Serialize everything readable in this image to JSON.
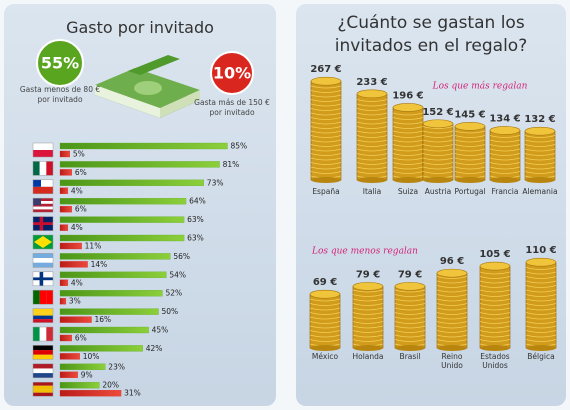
{
  "left": {
    "title": "Gasto por invitado",
    "stats": [
      {
        "value": 55,
        "label": "55%",
        "lines": [
          "Gasta menos de 80 €",
          "por invitado"
        ]
      },
      {
        "value": 10,
        "label": "10%",
        "lines": [
          "Gasta más de 150 €",
          "por invitado"
        ]
      }
    ]
  },
  "right": {
    "title": "¿Cuánto se gastan los invitados en el regalo?"
  },
  "chart_data": [
    {
      "type": "hbar",
      "series": [
        {
          "color": "#5fae22",
          "values": [
            85,
            81,
            73,
            64,
            63,
            63,
            56,
            54,
            52,
            50,
            45,
            42,
            23,
            20
          ],
          "value_labels": [
            "85%",
            "81%",
            "73%",
            "64%",
            "63%",
            "63%",
            "56%",
            "54%",
            "52%",
            "50%",
            "45%",
            "42%",
            "23%",
            "20%"
          ]
        },
        {
          "color": "#dd2b25",
          "values": [
            5,
            6,
            4,
            6,
            4,
            11,
            14,
            4,
            3,
            16,
            6,
            10,
            9,
            31
          ],
          "value_labels": [
            "5%",
            "6%",
            "4%",
            "6%",
            "4%",
            "11%",
            "14%",
            "4%",
            "3%",
            "16%",
            "6%",
            "10%",
            "9%",
            "31%"
          ]
        }
      ]
    },
    {
      "type": "coins",
      "title": "Los que más regalan",
      "categories": [
        "España",
        "Italia",
        "Suiza",
        "Austria",
        "Portugal",
        "Francia",
        "Alemania"
      ],
      "values": [
        267,
        233,
        196,
        152,
        145,
        134,
        132
      ],
      "value_labels": [
        "267 €",
        "233 €",
        "196 €",
        "152 €",
        "145 €",
        "134 €",
        "132 €"
      ]
    },
    {
      "type": "coins",
      "title": "Los que menos regalan",
      "categories": [
        "México",
        "Holanda",
        "Brasil",
        "Reino Unido",
        "Estados Unidos",
        "Bélgica"
      ],
      "values": [
        69,
        79,
        79,
        96,
        105,
        110
      ],
      "value_labels": [
        "69 €",
        "79 €",
        "79 €",
        "96 €",
        "105 €",
        "110 €"
      ]
    }
  ]
}
